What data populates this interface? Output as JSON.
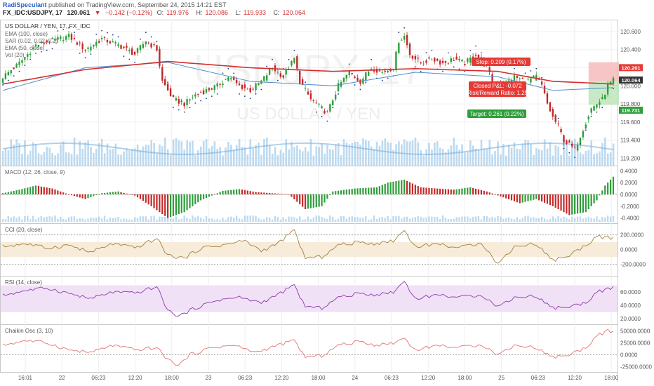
{
  "header": {
    "author": "RadiSpeculant",
    "published_text": "published on TradingView.com, September 24, 2015 14:21 EST",
    "symbol": "FX_IDC:USDJPY, 17",
    "last": "120.061",
    "change_arrow": "▼",
    "change": "−0.142 (−0.12%)",
    "o_label": "O:",
    "o": "119.976",
    "h_label": "H:",
    "h": "120.086",
    "l_label": "L:",
    "l": "119.933",
    "c_label": "C:",
    "c": "120.064"
  },
  "watermark": {
    "big": "USDJPY, 17",
    "small": "US DOLLAR / YEN"
  },
  "colors": {
    "up": "#2e9e3a",
    "down": "#c62828",
    "ema100": "#d32f2f",
    "ema_blue": "#4f8fc9",
    "sar": "#1a3a8a",
    "volume": "#9fcbe9",
    "cci": "#a08040",
    "rsi": "#8b3aa8",
    "chaikin": "#e57373",
    "stop_zone": "#f5b6b6",
    "target_zone": "#b9e3b5",
    "badge_red": "#e53935",
    "badge_green": "#2e9e3a",
    "badge_dark": "#333333"
  },
  "chart_data": [
    {
      "id": "price",
      "type": "candlestick",
      "title": "US DOLLAR / YEN, 17, FX_IDC",
      "legend": [
        "EMA (100, close)",
        "SAR (0.02, 0.02, 0.2)",
        "EMA (50, close)",
        "Vol (20)"
      ],
      "y_ticks": [
        "120.600",
        "120.400",
        "120.200",
        "120.000",
        "119.800",
        "119.600",
        "119.400",
        "119.200"
      ],
      "ylim": [
        119.15,
        120.7
      ],
      "x_ticks": [
        "16:01",
        "22",
        "06:23",
        "12:20",
        "18:00",
        "23",
        "06:23",
        "12:20",
        "18:00",
        "24",
        "06:23",
        "12:20",
        "18:00",
        "25",
        "06:23",
        "12:20",
        "18:00"
      ],
      "close_path": [
        [
          0,
          120.1
        ],
        [
          6,
          120.25
        ],
        [
          12,
          120.45
        ],
        [
          18,
          120.5
        ],
        [
          24,
          120.55
        ],
        [
          30,
          120.4
        ],
        [
          36,
          120.52
        ],
        [
          42,
          120.45
        ],
        [
          48,
          120.35
        ],
        [
          52,
          120.5
        ],
        [
          56,
          120.4
        ],
        [
          58,
          120.05
        ],
        [
          62,
          119.85
        ],
        [
          66,
          119.8
        ],
        [
          70,
          119.9
        ],
        [
          74,
          119.95
        ],
        [
          78,
          120.0
        ],
        [
          82,
          120.1
        ],
        [
          86,
          120.0
        ],
        [
          90,
          119.95
        ],
        [
          94,
          120.05
        ],
        [
          98,
          120.2
        ],
        [
          102,
          120.1
        ],
        [
          106,
          120.3
        ],
        [
          108,
          120.05
        ],
        [
          112,
          119.85
        ],
        [
          116,
          119.75
        ],
        [
          118,
          119.7
        ],
        [
          122,
          120.0
        ],
        [
          126,
          120.15
        ],
        [
          130,
          120.05
        ],
        [
          134,
          120.2
        ],
        [
          138,
          120.15
        ],
        [
          142,
          120.2
        ],
        [
          144,
          120.5
        ],
        [
          146,
          120.55
        ],
        [
          148,
          120.35
        ],
        [
          152,
          120.25
        ],
        [
          156,
          120.3
        ],
        [
          160,
          120.25
        ],
        [
          164,
          120.3
        ],
        [
          168,
          120.25
        ],
        [
          172,
          120.35
        ],
        [
          176,
          120.2
        ],
        [
          178,
          120.05
        ],
        [
          182,
          120.0
        ],
        [
          186,
          120.1
        ],
        [
          190,
          120.05
        ],
        [
          194,
          120.1
        ],
        [
          196,
          120.0
        ],
        [
          198,
          119.8
        ],
        [
          200,
          119.65
        ],
        [
          202,
          119.55
        ],
        [
          204,
          119.4
        ],
        [
          206,
          119.35
        ],
        [
          208,
          119.3
        ],
        [
          210,
          119.45
        ],
        [
          212,
          119.6
        ],
        [
          214,
          119.75
        ],
        [
          216,
          119.8
        ],
        [
          218,
          119.85
        ],
        [
          220,
          120.0
        ],
        [
          222,
          120.06
        ]
      ],
      "ema100_path": [
        [
          0,
          120.02
        ],
        [
          30,
          120.18
        ],
        [
          60,
          120.27
        ],
        [
          90,
          120.2
        ],
        [
          120,
          120.16
        ],
        [
          150,
          120.19
        ],
        [
          180,
          120.16
        ],
        [
          200,
          120.05
        ],
        [
          222,
          120.02
        ]
      ],
      "ema50_path": [
        [
          0,
          119.95
        ],
        [
          30,
          120.2
        ],
        [
          60,
          120.26
        ],
        [
          90,
          120.05
        ],
        [
          120,
          120.0
        ],
        [
          150,
          120.15
        ],
        [
          180,
          120.1
        ],
        [
          200,
          119.95
        ],
        [
          222,
          119.98
        ]
      ],
      "price_badges": [
        {
          "label": "120.201",
          "value": 120.201,
          "color": "badge_red"
        },
        {
          "label": "120.064",
          "value": 120.064,
          "color": "badge_dark"
        },
        {
          "label": "119.731",
          "value": 119.731,
          "color": "badge_green"
        }
      ],
      "position": {
        "entry": 120.052,
        "stop": 120.261,
        "target": 119.791,
        "stop_text": "Stop: 0.209 (0.17%)",
        "pl_text": "Closed P&L: -0.072",
        "rr_text": "Risk/Reward Ratio: 1.25",
        "target_text": "Target: 0.261 (0.22%)"
      }
    },
    {
      "id": "macd",
      "type": "histogram",
      "title": "MACD (12, 26, close, 9)",
      "y_ticks": [
        "0.4000",
        "0.2000",
        "0.0000",
        "-0.2000",
        "-0.4000"
      ],
      "ylim": [
        -0.44,
        0.44
      ],
      "path": [
        [
          0,
          0.02
        ],
        [
          6,
          0.08
        ],
        [
          12,
          0.15
        ],
        [
          18,
          0.1
        ],
        [
          24,
          0.0
        ],
        [
          30,
          -0.08
        ],
        [
          36,
          0.02
        ],
        [
          42,
          0.05
        ],
        [
          48,
          -0.02
        ],
        [
          54,
          -0.2
        ],
        [
          60,
          -0.4
        ],
        [
          66,
          -0.3
        ],
        [
          72,
          -0.1
        ],
        [
          80,
          0.06
        ],
        [
          86,
          0.09
        ],
        [
          92,
          0.04
        ],
        [
          98,
          0.02
        ],
        [
          104,
          0.0
        ],
        [
          110,
          -0.25
        ],
        [
          116,
          -0.2
        ],
        [
          120,
          0.05
        ],
        [
          128,
          0.1
        ],
        [
          136,
          0.12
        ],
        [
          140,
          0.2
        ],
        [
          146,
          0.25
        ],
        [
          152,
          0.12
        ],
        [
          158,
          0.1
        ],
        [
          164,
          0.08
        ],
        [
          170,
          0.12
        ],
        [
          176,
          0.05
        ],
        [
          182,
          -0.05
        ],
        [
          188,
          -0.15
        ],
        [
          194,
          -0.08
        ],
        [
          200,
          -0.2
        ],
        [
          206,
          -0.35
        ],
        [
          212,
          -0.3
        ],
        [
          216,
          -0.1
        ],
        [
          219,
          0.15
        ],
        [
          222,
          0.3
        ]
      ]
    },
    {
      "id": "cci",
      "type": "line",
      "title": "CCI (20, close)",
      "y_ticks": [
        "200.0000",
        "0.0000",
        "-200.0000"
      ],
      "ylim": [
        -320,
        320
      ],
      "path": [
        [
          0,
          40
        ],
        [
          8,
          80
        ],
        [
          16,
          20
        ],
        [
          24,
          60
        ],
        [
          32,
          -40
        ],
        [
          40,
          80
        ],
        [
          48,
          20
        ],
        [
          56,
          150
        ],
        [
          60,
          -80
        ],
        [
          66,
          -120
        ],
        [
          72,
          20
        ],
        [
          80,
          60
        ],
        [
          88,
          120
        ],
        [
          94,
          -20
        ],
        [
          100,
          80
        ],
        [
          106,
          260
        ],
        [
          110,
          -120
        ],
        [
          116,
          -100
        ],
        [
          122,
          60
        ],
        [
          130,
          100
        ],
        [
          136,
          80
        ],
        [
          142,
          120
        ],
        [
          146,
          260
        ],
        [
          150,
          40
        ],
        [
          158,
          80
        ],
        [
          166,
          20
        ],
        [
          174,
          100
        ],
        [
          180,
          -200
        ],
        [
          186,
          40
        ],
        [
          194,
          80
        ],
        [
          200,
          -150
        ],
        [
          206,
          -80
        ],
        [
          212,
          60
        ],
        [
          216,
          180
        ],
        [
          220,
          160
        ],
        [
          222,
          140
        ]
      ]
    },
    {
      "id": "rsi",
      "type": "line",
      "title": "RSI (14, close)",
      "y_ticks": [
        "60.0000",
        "40.0000",
        "20.0000"
      ],
      "ylim": [
        16,
        80
      ],
      "bands": [
        30,
        70
      ],
      "path": [
        [
          0,
          55
        ],
        [
          8,
          62
        ],
        [
          16,
          66
        ],
        [
          24,
          58
        ],
        [
          32,
          50
        ],
        [
          40,
          60
        ],
        [
          48,
          58
        ],
        [
          56,
          68
        ],
        [
          60,
          32
        ],
        [
          64,
          24
        ],
        [
          70,
          36
        ],
        [
          78,
          48
        ],
        [
          86,
          52
        ],
        [
          94,
          44
        ],
        [
          100,
          56
        ],
        [
          106,
          70
        ],
        [
          110,
          38
        ],
        [
          116,
          36
        ],
        [
          122,
          52
        ],
        [
          130,
          58
        ],
        [
          136,
          56
        ],
        [
          142,
          60
        ],
        [
          146,
          76
        ],
        [
          150,
          50
        ],
        [
          158,
          56
        ],
        [
          166,
          52
        ],
        [
          174,
          56
        ],
        [
          180,
          38
        ],
        [
          186,
          52
        ],
        [
          194,
          54
        ],
        [
          200,
          36
        ],
        [
          206,
          38
        ],
        [
          212,
          44
        ],
        [
          216,
          60
        ],
        [
          220,
          64
        ],
        [
          222,
          66
        ]
      ]
    },
    {
      "id": "chaikin",
      "type": "line",
      "title": "Chaikin Osc (3, 10)",
      "y_ticks": [
        "50000.0000",
        "25000.0000",
        "0.0000",
        "-25000.0000"
      ],
      "ylim": [
        -30000,
        58000
      ],
      "path": [
        [
          0,
          20000
        ],
        [
          8,
          30000
        ],
        [
          16,
          25000
        ],
        [
          24,
          10000
        ],
        [
          32,
          5000
        ],
        [
          40,
          20000
        ],
        [
          48,
          10000
        ],
        [
          56,
          15000
        ],
        [
          60,
          -10000
        ],
        [
          64,
          -22000
        ],
        [
          68,
          0
        ],
        [
          76,
          15000
        ],
        [
          84,
          20000
        ],
        [
          92,
          5000
        ],
        [
          100,
          20000
        ],
        [
          106,
          30000
        ],
        [
          110,
          -5000
        ],
        [
          116,
          -2000
        ],
        [
          122,
          20000
        ],
        [
          130,
          28000
        ],
        [
          136,
          20000
        ],
        [
          142,
          25000
        ],
        [
          146,
          35000
        ],
        [
          150,
          10000
        ],
        [
          158,
          20000
        ],
        [
          166,
          15000
        ],
        [
          174,
          22000
        ],
        [
          180,
          0
        ],
        [
          186,
          20000
        ],
        [
          194,
          15000
        ],
        [
          200,
          -5000
        ],
        [
          206,
          0
        ],
        [
          212,
          15000
        ],
        [
          216,
          40000
        ],
        [
          220,
          50000
        ],
        [
          222,
          46000
        ]
      ]
    }
  ]
}
